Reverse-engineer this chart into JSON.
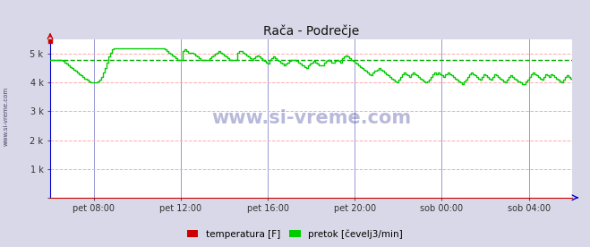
{
  "title": "Rača - Podrečje",
  "bg_color": "#d8d8e8",
  "plot_bg_color": "#ffffff",
  "grid_color_v": "#8888cc",
  "grid_color_h": "#ffaaaa",
  "line_color": "#00cc00",
  "avg_line_color": "#00aa00",
  "temp_color": "#cc0000",
  "axis_color": "#0000cc",
  "ylim": [
    0,
    5500
  ],
  "yticks": [
    0,
    1000,
    2000,
    3000,
    4000,
    5000
  ],
  "ytick_labels": [
    "",
    "1 k",
    "2 k",
    "3 k",
    "4 k",
    "5 k"
  ],
  "xtick_labels": [
    "pet 08:00",
    "pet 12:00",
    "pet 16:00",
    "pet 20:00",
    "sob 00:00",
    "sob 04:00"
  ],
  "avg_value": 4800,
  "temp_value": 5450,
  "legend_labels": [
    "temperatura [F]",
    "pretok [čevelj3/min]"
  ],
  "legend_colors": [
    "#cc0000",
    "#00cc00"
  ],
  "watermark": "www.si-vreme.com",
  "pretok_data": [
    4800,
    4800,
    4800,
    4800,
    4800,
    4800,
    4800,
    4750,
    4700,
    4650,
    4600,
    4550,
    4500,
    4450,
    4400,
    4350,
    4300,
    4250,
    4200,
    4150,
    4100,
    4050,
    4000,
    4000,
    4000,
    4000,
    4050,
    4100,
    4200,
    4350,
    4500,
    4700,
    4900,
    5050,
    5150,
    5200,
    5200,
    5200,
    5200,
    5200,
    5200,
    5200,
    5200,
    5200,
    5200,
    5200,
    5200,
    5200,
    5200,
    5200,
    5200,
    5200,
    5200,
    5200,
    5200,
    5200,
    5200,
    5200,
    5200,
    5200,
    5200,
    5200,
    5200,
    5150,
    5100,
    5050,
    5000,
    4950,
    4900,
    4850,
    4800,
    4800,
    4800,
    5100,
    5150,
    5100,
    5050,
    5050,
    5050,
    5000,
    4950,
    4900,
    4850,
    4800,
    4800,
    4800,
    4800,
    4800,
    4850,
    4900,
    4950,
    5000,
    5050,
    5100,
    5050,
    5000,
    4950,
    4900,
    4850,
    4800,
    4800,
    4800,
    4800,
    5050,
    5100,
    5100,
    5050,
    5000,
    4950,
    4900,
    4850,
    4800,
    4850,
    4900,
    4950,
    4900,
    4850,
    4800,
    4750,
    4700,
    4650,
    4800,
    4850,
    4900,
    4850,
    4800,
    4750,
    4700,
    4650,
    4600,
    4650,
    4700,
    4750,
    4800,
    4800,
    4800,
    4750,
    4700,
    4650,
    4600,
    4550,
    4500,
    4600,
    4650,
    4700,
    4750,
    4700,
    4650,
    4600,
    4600,
    4600,
    4700,
    4750,
    4800,
    4750,
    4700,
    4700,
    4750,
    4800,
    4750,
    4700,
    4850,
    4900,
    4950,
    4900,
    4850,
    4800,
    4750,
    4700,
    4650,
    4600,
    4550,
    4500,
    4450,
    4400,
    4350,
    4300,
    4250,
    4350,
    4400,
    4450,
    4500,
    4450,
    4400,
    4350,
    4300,
    4250,
    4200,
    4150,
    4100,
    4050,
    4000,
    4100,
    4200,
    4300,
    4350,
    4300,
    4250,
    4200,
    4300,
    4350,
    4300,
    4250,
    4200,
    4150,
    4100,
    4050,
    4000,
    4050,
    4100,
    4200,
    4300,
    4350,
    4300,
    4350,
    4300,
    4250,
    4200,
    4300,
    4350,
    4300,
    4250,
    4200,
    4150,
    4100,
    4050,
    4000,
    3950,
    4050,
    4100,
    4200,
    4300,
    4350,
    4300,
    4250,
    4200,
    4150,
    4100,
    4200,
    4300,
    4250,
    4200,
    4150,
    4100,
    4200,
    4300,
    4250,
    4200,
    4150,
    4100,
    4050,
    4000,
    4100,
    4200,
    4250,
    4200,
    4150,
    4100,
    4050,
    4000,
    3950,
    3950,
    4050,
    4100,
    4200,
    4300,
    4350,
    4300,
    4250,
    4200,
    4150,
    4100,
    4200,
    4300,
    4250,
    4200,
    4300,
    4250,
    4200,
    4150,
    4100,
    4050,
    4000,
    4100,
    4200,
    4250,
    4200,
    4150,
    4100
  ]
}
